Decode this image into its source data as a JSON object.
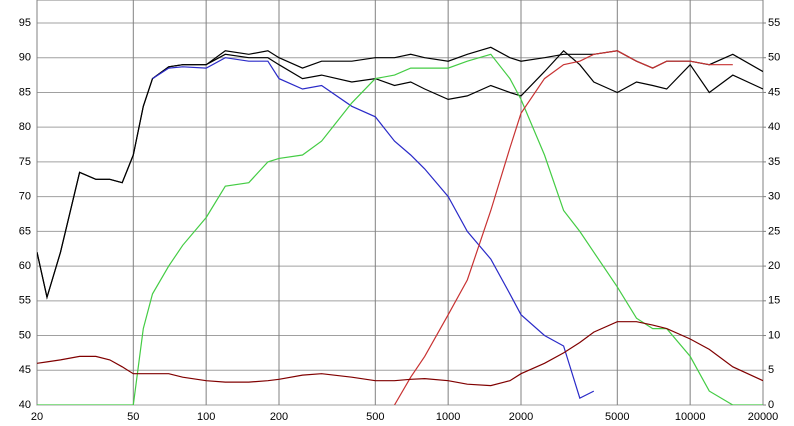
{
  "chart_data": {
    "type": "line",
    "x": [
      20,
      22,
      25,
      30,
      35,
      40,
      45,
      50,
      55,
      60,
      70,
      80,
      100,
      120,
      150,
      180,
      200,
      250,
      300,
      400,
      500,
      600,
      700,
      800,
      1000,
      1200,
      1500,
      1800,
      2000,
      2500,
      3000,
      3500,
      4000,
      5000,
      6000,
      7000,
      8000,
      10000,
      12000,
      15000,
      20000
    ],
    "xlim": [
      20,
      20000
    ],
    "xscale": "log",
    "xticks": [
      20,
      50,
      100,
      200,
      500,
      1000,
      2000,
      5000,
      10000,
      20000
    ],
    "ylim": [
      40,
      95
    ],
    "yticks": [
      40,
      45,
      50,
      55,
      60,
      65,
      70,
      75,
      80,
      85,
      90,
      95
    ],
    "y2lim": [
      0,
      55
    ],
    "y2ticks": [
      0,
      5,
      10,
      15,
      20,
      25,
      30,
      35,
      40,
      45,
      50,
      55
    ],
    "grid": true,
    "series": [
      {
        "color": "#000000",
        "values": [
          62,
          55.5,
          62,
          73.5,
          72.5,
          72.5,
          72,
          76,
          83,
          87,
          88.7,
          89,
          89,
          91,
          90.5,
          91,
          90,
          88.5,
          89.5,
          89.5,
          90,
          90,
          90.5,
          90,
          89.5,
          90.5,
          91.5,
          90,
          89.5,
          90,
          90.5,
          90.5,
          90.5,
          91,
          89.5,
          88.5,
          89.5,
          89.5,
          89,
          90.5,
          88
        ]
      },
      {
        "color": "#000000",
        "values": [
          62,
          55.5,
          62,
          73.5,
          72.5,
          72.5,
          72,
          76,
          83,
          87,
          88.7,
          89,
          89,
          90.5,
          90,
          90,
          89,
          87,
          87.5,
          86.5,
          87,
          86,
          86.5,
          85.5,
          84,
          84.5,
          86,
          85,
          84.5,
          88,
          91,
          89,
          86.5,
          85,
          86.5,
          86,
          85.5,
          89,
          85,
          87.5,
          85.5
        ]
      },
      {
        "color": "#2a2ac8",
        "values": [
          null,
          null,
          null,
          null,
          null,
          null,
          null,
          null,
          null,
          87,
          88.5,
          88.7,
          88.5,
          90,
          89.5,
          89.5,
          87,
          85.5,
          86,
          83,
          81.5,
          78,
          76,
          74,
          70,
          65,
          61,
          56,
          53,
          50,
          48.5,
          41,
          42,
          null,
          null,
          null,
          null,
          null,
          null,
          null,
          null
        ]
      },
      {
        "color": "#44cc44",
        "values": [
          40,
          40,
          40,
          40,
          40,
          40,
          40,
          40,
          51,
          56,
          60,
          63,
          67,
          71.5,
          72,
          75,
          75.5,
          76,
          78,
          83.5,
          87,
          87.5,
          88.5,
          88.5,
          88.5,
          89.5,
          90.5,
          87,
          84,
          76,
          68,
          65,
          62,
          57,
          52.5,
          51,
          51,
          47,
          42,
          40,
          40
        ]
      },
      {
        "color": "#c83232",
        "values": [
          null,
          null,
          null,
          null,
          null,
          null,
          null,
          null,
          null,
          null,
          null,
          null,
          null,
          null,
          null,
          null,
          null,
          null,
          null,
          null,
          null,
          40,
          44,
          47,
          53,
          58,
          68,
          77,
          82,
          87,
          89,
          89.5,
          90.5,
          91,
          89.5,
          88.5,
          89.5,
          89.5,
          89,
          89,
          null
        ]
      },
      {
        "color": "#800000",
        "axis": "y2",
        "values": [
          6,
          6.2,
          6.5,
          7,
          7,
          6.5,
          5.5,
          4.5,
          4.5,
          4.5,
          4.5,
          4,
          3.5,
          3.3,
          3.3,
          3.5,
          3.7,
          4.3,
          4.5,
          4,
          3.5,
          3.5,
          3.7,
          3.8,
          3.5,
          3,
          2.8,
          3.5,
          4.5,
          6,
          7.5,
          9,
          10.5,
          12,
          12,
          11.5,
          11,
          9.5,
          8,
          5.5,
          3.5
        ]
      }
    ]
  }
}
